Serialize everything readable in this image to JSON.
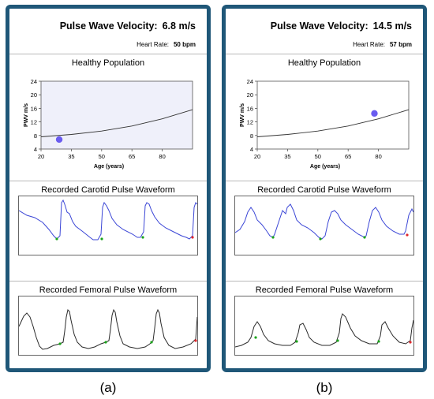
{
  "panels": [
    {
      "pwv_label": "Pulse Wave Velocity:",
      "pwv_value": "6.8 m/s",
      "hr_label": "Heart Rate:",
      "hr_value": "50 bpm",
      "population_title": "Healthy Population",
      "carotid_title": "Recorded Carotid Pulse Waveform",
      "femoral_title": "Recorded Femoral Pulse Waveform",
      "caption": "(a)",
      "plot_bg": "#eff0fa"
    },
    {
      "pwv_label": "Pulse Wave Velocity:",
      "pwv_value": "14.5 m/s",
      "hr_label": "Heart Rate:",
      "hr_value": "57 bpm",
      "population_title": "Healthy Population",
      "carotid_title": "Recorded Carotid Pulse Waveform",
      "femoral_title": "Recorded Femoral Pulse Waveform",
      "caption": "(b)",
      "plot_bg": "#ffffff"
    }
  ],
  "chart_data": [
    {
      "type": "scatter",
      "title": "Healthy Population",
      "xlabel": "Age (years)",
      "ylabel": "PWV m/s",
      "xlim": [
        20,
        95
      ],
      "ylim": [
        4,
        24
      ],
      "xticks": [
        20,
        35,
        50,
        65,
        80
      ],
      "yticks": [
        4,
        8,
        12,
        16,
        20,
        24
      ],
      "reference_curve": {
        "x": [
          20,
          35,
          50,
          65,
          80,
          95
        ],
        "y": [
          7.6,
          8.3,
          9.3,
          10.8,
          12.9,
          15.6
        ]
      },
      "points": [
        {
          "x": 29,
          "y": 6.8
        }
      ]
    },
    {
      "type": "scatter",
      "title": "Healthy Population",
      "xlabel": "Age (years)",
      "ylabel": "PWV m/s",
      "xlim": [
        20,
        95
      ],
      "ylim": [
        4,
        24
      ],
      "xticks": [
        20,
        35,
        50,
        65,
        80
      ],
      "yticks": [
        4,
        8,
        12,
        16,
        20,
        24
      ],
      "reference_curve": {
        "x": [
          20,
          35,
          50,
          65,
          80,
          95
        ],
        "y": [
          7.6,
          8.3,
          9.3,
          10.8,
          12.9,
          15.6
        ]
      },
      "points": [
        {
          "x": 78,
          "y": 14.5
        }
      ]
    }
  ],
  "colors": {
    "frame": "#1f5778",
    "carotid_trace": "#3b46d6",
    "femoral_trace": "#2a2a2a",
    "marker_point": "#6a5cf0",
    "foot_marker": "#1aa31a",
    "end_marker": "#e0262b",
    "curve": "#333333"
  }
}
